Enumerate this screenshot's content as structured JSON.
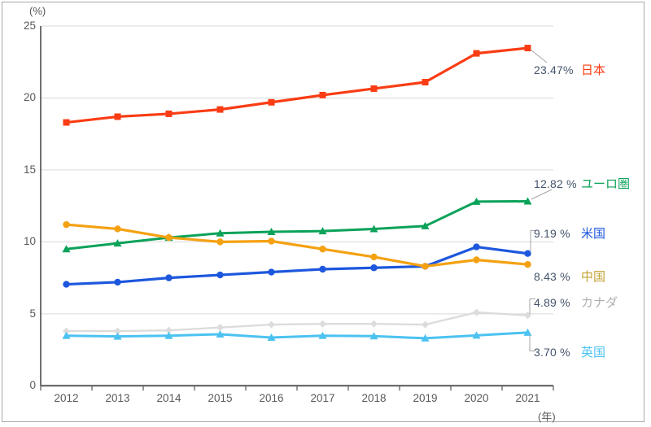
{
  "units": {
    "y": "(%)",
    "x": "(年)"
  },
  "chart_data": {
    "type": "line",
    "title": "",
    "x_categories": [
      "2012",
      "2013",
      "2014",
      "2015",
      "2016",
      "2017",
      "2018",
      "2019",
      "2020",
      "2021"
    ],
    "ylim": [
      0,
      25
    ],
    "yticks": [
      0,
      5,
      10,
      15,
      20,
      25
    ],
    "grid": true,
    "legend_position": "right-edge-annotations",
    "series": [
      {
        "id": "japan",
        "name": "日本",
        "end_label": "23.47%",
        "color": "#fa3c14",
        "label_color": "#fa3c14",
        "marker": "square",
        "values": [
          18.3,
          18.7,
          18.9,
          19.2,
          19.7,
          20.2,
          20.65,
          21.1,
          23.1,
          23.47
        ]
      },
      {
        "id": "eurozone",
        "name": "ユーロ圏",
        "end_label": "12.82 %",
        "color": "#0ba259",
        "label_color": "#0ba259",
        "marker": "triangle",
        "values": [
          9.5,
          9.9,
          10.3,
          10.6,
          10.7,
          10.75,
          10.9,
          11.1,
          12.8,
          12.82
        ]
      },
      {
        "id": "us",
        "name": "米国",
        "end_label": "9.19 %",
        "color": "#1d57dd",
        "label_color": "#1d57dd",
        "marker": "circle",
        "values": [
          7.05,
          7.2,
          7.5,
          7.7,
          7.9,
          8.1,
          8.2,
          8.3,
          9.65,
          9.19
        ]
      },
      {
        "id": "china",
        "name": "中国",
        "end_label": "8.43 %",
        "color": "#f4a112",
        "label_color": "#c2a233",
        "marker": "circle",
        "values": [
          11.2,
          10.9,
          10.3,
          10.0,
          10.05,
          9.5,
          8.95,
          8.3,
          8.75,
          8.43
        ]
      },
      {
        "id": "canada",
        "name": "カナダ",
        "end_label": "4.89 %",
        "color": "#dcdcdc",
        "label_color": "#aeaeae",
        "marker": "diamond",
        "values": [
          3.8,
          3.8,
          3.85,
          4.05,
          4.25,
          4.3,
          4.3,
          4.25,
          5.1,
          4.89
        ]
      },
      {
        "id": "uk",
        "name": "英国",
        "end_label": "3.70 %",
        "color": "#4cc2f1",
        "label_color": "#4cc2f1",
        "marker": "triangle",
        "values": [
          3.48,
          3.43,
          3.48,
          3.58,
          3.35,
          3.48,
          3.45,
          3.3,
          3.5,
          3.7
        ]
      }
    ],
    "colors": {
      "grid": "#d9d9d9",
      "axis": "#595959",
      "y_axis": "#404040",
      "tick_text": "#595959",
      "value_text": "#44546a",
      "leader": "#a6a6a6",
      "border": "#a9a9a9",
      "background": "#ffffff"
    }
  }
}
